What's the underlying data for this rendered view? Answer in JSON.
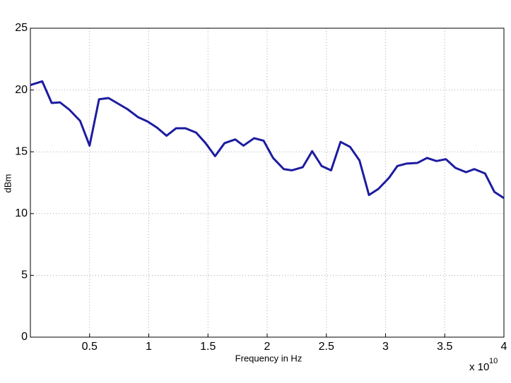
{
  "chart_data": {
    "type": "line",
    "xlabel": "Frequency in Hz",
    "ylabel": "dBm",
    "x_exponent_base": "x 10",
    "x_exponent_power": "10",
    "xlim": [
      0,
      4
    ],
    "ylim": [
      0,
      25
    ],
    "xticks": [
      0.5,
      1,
      1.5,
      2,
      2.5,
      3,
      3.5,
      4
    ],
    "yticks": [
      0,
      5,
      10,
      15,
      20,
      25
    ],
    "grid": true,
    "x": [
      0,
      0.1,
      0.18,
      0.25,
      0.33,
      0.42,
      0.5,
      0.58,
      0.66,
      0.74,
      0.82,
      0.91,
      0.99,
      1.07,
      1.15,
      1.23,
      1.31,
      1.4,
      1.48,
      1.56,
      1.64,
      1.73,
      1.8,
      1.89,
      1.97,
      2.05,
      2.14,
      2.21,
      2.3,
      2.38,
      2.46,
      2.54,
      2.62,
      2.7,
      2.78,
      2.86,
      2.94,
      3.03,
      3.1,
      3.18,
      3.27,
      3.35,
      3.43,
      3.51,
      3.59,
      3.68,
      3.75,
      3.84,
      3.92,
      4.0
    ],
    "series": [
      {
        "color": "#1c1ca0",
        "values": [
          20.4,
          20.7,
          18.95,
          19.0,
          18.4,
          17.5,
          15.5,
          19.25,
          19.35,
          18.9,
          18.45,
          17.8,
          17.45,
          16.95,
          16.3,
          16.9,
          16.9,
          16.55,
          15.7,
          14.65,
          15.7,
          16.0,
          15.5,
          16.1,
          15.9,
          14.5,
          13.6,
          13.5,
          13.75,
          15.05,
          13.85,
          13.5,
          15.8,
          15.4,
          14.3,
          11.5,
          12.0,
          12.9,
          13.85,
          14.05,
          14.1,
          14.5,
          14.25,
          14.4,
          13.7,
          13.35,
          13.6,
          13.25,
          11.75,
          11.25
        ]
      }
    ]
  }
}
